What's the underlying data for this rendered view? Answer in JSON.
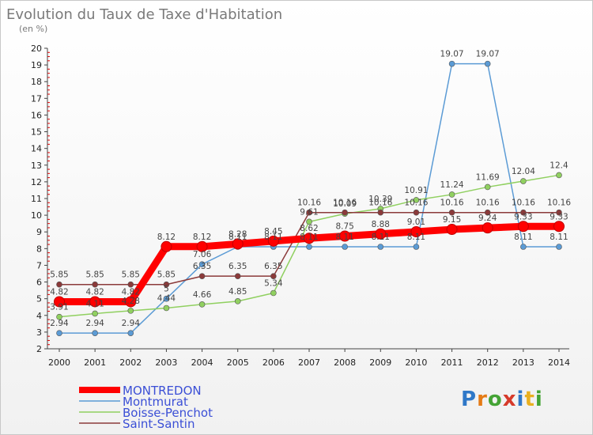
{
  "chart_data": {
    "type": "line",
    "title": "Evolution du Taux de Taxe d'Habitation",
    "subtitle": "(en %)",
    "x": [
      "2000",
      "2001",
      "2002",
      "2003",
      "2004",
      "2005",
      "2006",
      "2007",
      "2008",
      "2009",
      "2010",
      "2011",
      "2012",
      "2013",
      "2014"
    ],
    "ylim": [
      2,
      20
    ],
    "yticks": [
      "2",
      "3",
      "4",
      "5",
      "6",
      "7",
      "8",
      "9",
      "10",
      "11",
      "12",
      "13",
      "14",
      "15",
      "16",
      "17",
      "18",
      "19",
      "20"
    ],
    "grid": false,
    "legend_position": "bottom-left",
    "series": [
      {
        "name": "MONTREDON",
        "color": "#ff0000",
        "values": [
          4.82,
          4.82,
          4.82,
          8.12,
          8.12,
          8.28,
          8.45,
          8.62,
          8.75,
          8.88,
          9.01,
          9.15,
          9.24,
          9.33,
          9.33
        ],
        "labels": [
          "4.82",
          "4.82",
          "4.82",
          "8.12",
          "8.12",
          "8.28",
          "8.45",
          "8.62",
          "8.75",
          "8.88",
          "9.01",
          "9.15",
          "9.24",
          "9.33",
          "9.33"
        ]
      },
      {
        "name": "Montmurat",
        "color": "#5b9bd5",
        "values": [
          2.94,
          2.94,
          2.94,
          5.0,
          7.06,
          8.11,
          8.11,
          8.11,
          8.11,
          8.11,
          8.11,
          19.07,
          19.07,
          8.11,
          8.11
        ],
        "labels": [
          "2.94",
          "2.94",
          "2.94",
          "5",
          "7.06",
          "8.11",
          "8.11",
          "8.11",
          "8.11",
          "8.11",
          "8.11",
          "19.07",
          "19.07",
          "8.11",
          "8.11"
        ]
      },
      {
        "name": "Boisse-Penchot",
        "color": "#90d060",
        "values": [
          3.91,
          4.11,
          4.28,
          4.44,
          4.66,
          4.85,
          5.34,
          9.61,
          10.09,
          10.39,
          10.91,
          11.24,
          11.69,
          12.04,
          12.4
        ],
        "labels": [
          "3.91",
          "4.11",
          "4.28",
          "4.44",
          "4.66",
          "4.85",
          "5.34",
          "9.61",
          "10.09",
          "10.39",
          "10.91",
          "11.24",
          "11.69",
          "12.04",
          "12.4"
        ]
      },
      {
        "name": "Saint-Santin",
        "color": "#8b3a3a",
        "values": [
          5.85,
          5.85,
          5.85,
          5.85,
          6.35,
          6.35,
          6.35,
          10.16,
          10.16,
          10.16,
          10.16,
          10.16,
          10.16,
          10.16,
          10.16
        ],
        "labels": [
          "5.85",
          "5.85",
          "5.85",
          "5.85",
          "6.35",
          "6.35",
          "6.35",
          "10.16",
          "10.16",
          "10.16",
          "10.16",
          "10.16",
          "10.16",
          "10.16",
          "10.16"
        ]
      }
    ]
  },
  "logo": {
    "text": "Proxiti"
  }
}
